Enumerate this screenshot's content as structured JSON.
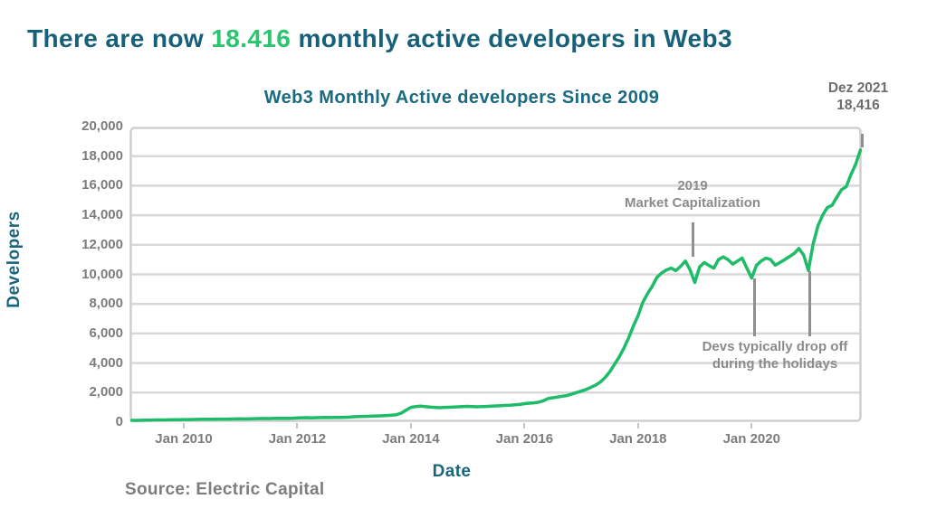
{
  "headline": {
    "prefix": "There are now ",
    "highlight": "18.416",
    "suffix": " monthly active developers in Web3"
  },
  "source_note": "Source: Electric Capital",
  "colors": {
    "teal_headline": "#17607a",
    "teal_chart": "#1a6a80",
    "green_highlight": "#2bc46f",
    "green_line": "#1ebc68",
    "gray_text": "#7c7c7c",
    "gray_annotation": "#8b8b8b",
    "gridline": "#d8d8d8"
  },
  "chart_data": {
    "type": "line",
    "title": "Web3 Monthly Active developers Since 2009",
    "xlabel": "Date",
    "ylabel": "Developers",
    "ylim": [
      0,
      20000
    ],
    "grid": true,
    "legend_position": "none",
    "y_ticks": [
      {
        "value": 0,
        "label": "0"
      },
      {
        "value": 2000,
        "label": "2,000"
      },
      {
        "value": 4000,
        "label": "4,000"
      },
      {
        "value": 6000,
        "label": "6,000"
      },
      {
        "value": 8000,
        "label": "8,000"
      },
      {
        "value": 10000,
        "label": "10,000"
      },
      {
        "value": 12000,
        "label": "12,000"
      },
      {
        "value": 14000,
        "label": "14,000"
      },
      {
        "value": 16000,
        "label": "16,000"
      },
      {
        "value": 18000,
        "label": "18,000"
      },
      {
        "value": 20000,
        "label": "20,000"
      }
    ],
    "x_ticks": [
      {
        "label": "Jan 2010",
        "month_index": 11
      },
      {
        "label": "Jan 2012",
        "month_index": 35
      },
      {
        "label": "Jan 2014",
        "month_index": 59
      },
      {
        "label": "Jan 2016",
        "month_index": 83
      },
      {
        "label": "Jan 2018",
        "month_index": 107
      },
      {
        "label": "Jan 2020",
        "month_index": 131
      }
    ],
    "series": [
      {
        "name": "Web3 monthly active developers",
        "color": "#1ebc68",
        "start": "Feb 2009",
        "end": "Dez 2021",
        "interval": "monthly",
        "values": [
          120,
          125,
          130,
          135,
          140,
          150,
          155,
          150,
          160,
          165,
          170,
          180,
          175,
          185,
          190,
          195,
          200,
          195,
          205,
          210,
          205,
          215,
          220,
          225,
          220,
          230,
          240,
          245,
          250,
          245,
          255,
          260,
          265,
          260,
          270,
          295,
          300,
          305,
          295,
          305,
          310,
          315,
          310,
          320,
          325,
          330,
          340,
          370,
          380,
          390,
          400,
          410,
          420,
          435,
          450,
          470,
          510,
          620,
          820,
          1000,
          1060,
          1080,
          1050,
          1020,
          1000,
          980,
          1000,
          1010,
          1020,
          1040,
          1060,
          1070,
          1050,
          1040,
          1055,
          1065,
          1080,
          1100,
          1120,
          1135,
          1150,
          1175,
          1200,
          1255,
          1285,
          1310,
          1350,
          1450,
          1600,
          1650,
          1700,
          1755,
          1805,
          1900,
          2005,
          2100,
          2210,
          2350,
          2500,
          2710,
          3000,
          3400,
          3900,
          4400,
          5000,
          5700,
          6500,
          7200,
          8100,
          8700,
          9200,
          9800,
          10100,
          10300,
          10420,
          10250,
          10550,
          10900,
          10300,
          9450,
          10500,
          10800,
          10600,
          10420,
          11000,
          11180,
          11000,
          10700,
          10900,
          11100,
          10420,
          9750,
          10600,
          10900,
          11100,
          11000,
          10620,
          10800,
          11000,
          11200,
          11420,
          11750,
          11300,
          10260,
          12050,
          13280,
          14000,
          14520,
          14670,
          15220,
          15730,
          15930,
          16750,
          17460,
          18416
        ]
      }
    ],
    "annotations": {
      "latest": {
        "line1": "Dez 2021",
        "line2": "18,416"
      },
      "market_cap": {
        "line1": "2019",
        "line2": "Market Capitalization"
      },
      "holidays": {
        "line1": "Devs typically drop off",
        "line2": "during the holidays"
      }
    }
  }
}
